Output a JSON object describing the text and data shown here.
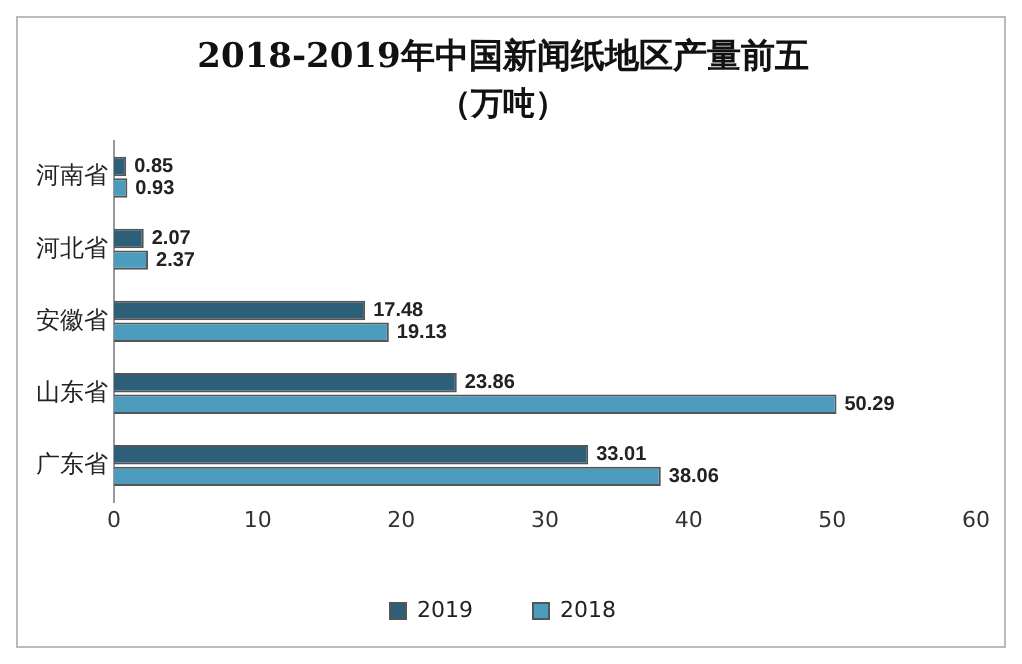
{
  "chart_data": {
    "type": "bar",
    "orientation": "horizontal",
    "title": "2018-2019年中国新闻纸地区产量前五",
    "subtitle": "（万吨）",
    "categories": [
      "河南省",
      "河北省",
      "安徽省",
      "山东省",
      "广东省"
    ],
    "series": [
      {
        "name": "2019",
        "color": "#2d5f78",
        "values": [
          0.85,
          2.07,
          17.48,
          23.86,
          33.01
        ]
      },
      {
        "name": "2018",
        "color": "#4c9cbd",
        "values": [
          0.93,
          2.37,
          19.13,
          50.29,
          38.06
        ]
      }
    ],
    "xlim": [
      0,
      60
    ],
    "xticks": [
      0,
      10,
      20,
      30,
      40,
      50,
      60
    ],
    "data_labels": true,
    "legend": "bottom",
    "grid": false
  }
}
